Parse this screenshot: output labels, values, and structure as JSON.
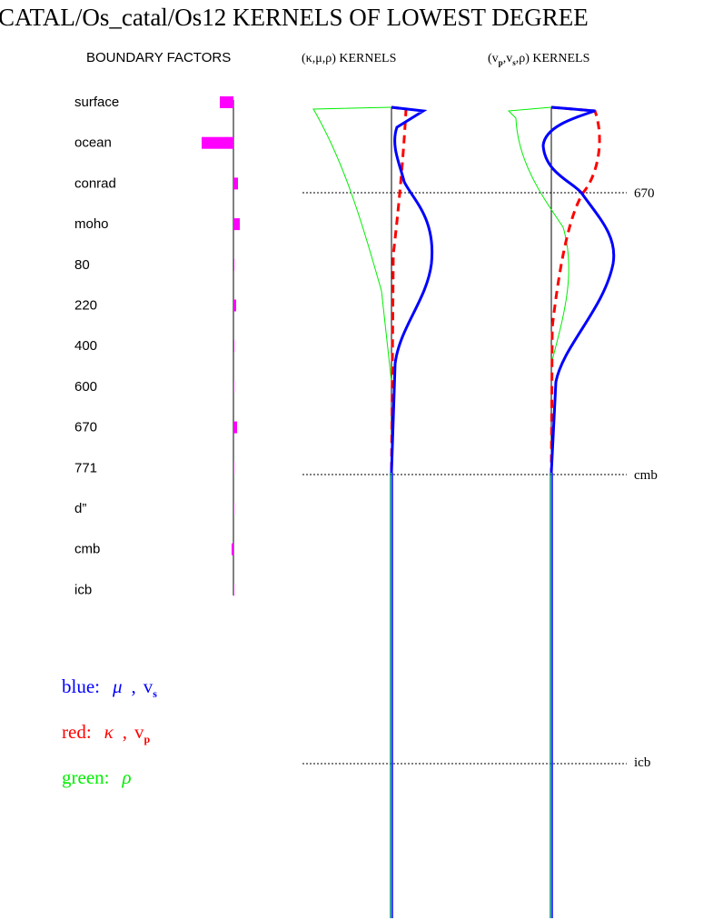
{
  "title": "CATAL/Os_catal/Os12 KERNELS OF LOWEST DEGREE",
  "boundary_factors": {
    "title": "BOUNDARY FACTORS",
    "labels": [
      "surface",
      "ocean",
      "conrad",
      "moho",
      "80",
      "220",
      "400",
      "600",
      "670",
      "771",
      "d”",
      "cmb",
      "icb"
    ],
    "values": [
      -15,
      -35,
      5,
      7,
      1,
      3,
      1,
      0,
      4,
      0,
      0,
      -2,
      0
    ],
    "color": "#ff00ff"
  },
  "panels": [
    {
      "parts": [
        "(κ,μ,ρ) KERNELS"
      ]
    },
    {
      "parts": [
        "(v",
        "p",
        ",v",
        "s",
        ",ρ) KERNELS"
      ]
    }
  ],
  "depth_markers": [
    "670",
    "cmb",
    "icb"
  ],
  "legend": [
    {
      "label": "blue:",
      "symbol": "μ",
      "separator": ",",
      "symbol2": "v",
      "subscript": "s",
      "color": "#0000ff"
    },
    {
      "label": "red:",
      "symbol": "κ",
      "separator": ",",
      "symbol2": "v",
      "subscript": "p",
      "color": "#ff0000"
    },
    {
      "label": "green:",
      "symbol": "ρ",
      "color": "#00ee00"
    }
  ]
}
